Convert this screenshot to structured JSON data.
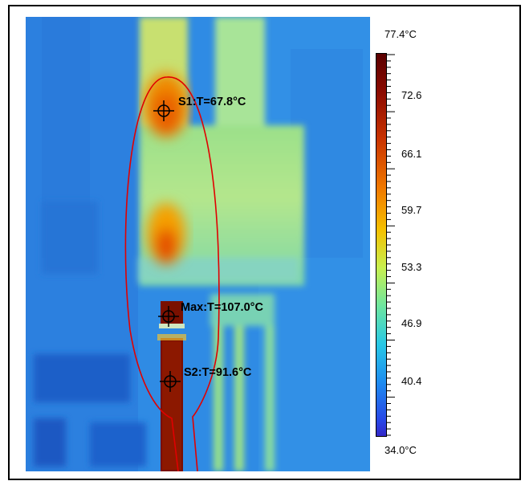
{
  "scale": {
    "max_label": "77.4°C",
    "min_label": "34.0°C",
    "ticks": [
      "72.6",
      "66.1",
      "59.7",
      "53.3",
      "46.9",
      "40.4"
    ],
    "palette": "ironbow"
  },
  "spots": {
    "s1": "S1:T=67.8°C",
    "max": "Max:T=107.0°C",
    "s2": "S2:T=91.6°C"
  },
  "annotation": {
    "shape": "ellipse-with-tail",
    "color": "#e00000"
  }
}
